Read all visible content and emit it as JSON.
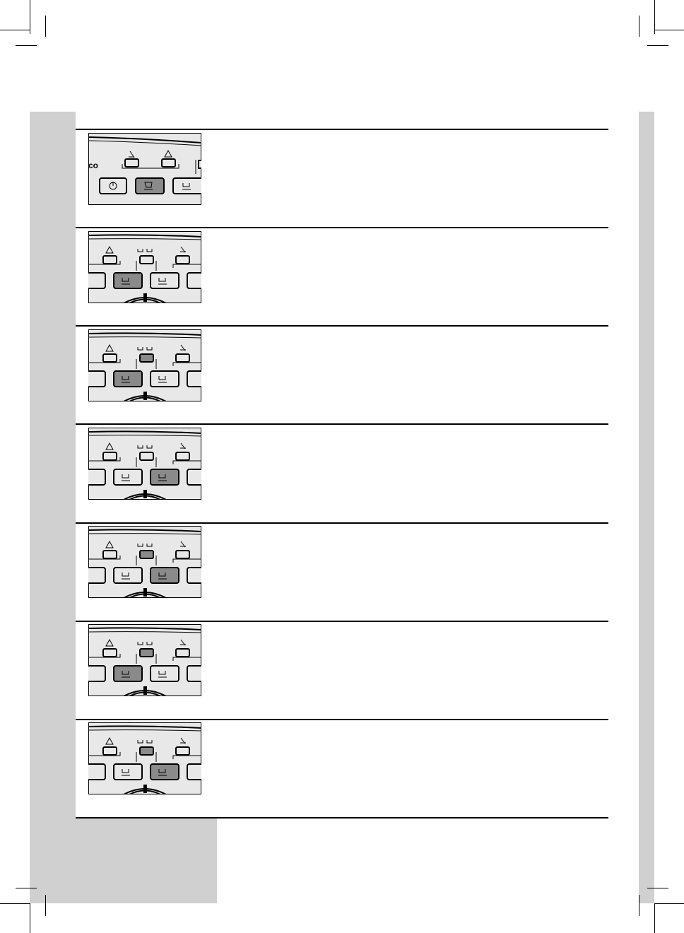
{
  "colors": {
    "band": "#d0d0d0",
    "panel_bg": "#e8e8e8",
    "active": "#8a8a8a",
    "line": "#000000"
  },
  "first_panel": {
    "logo_text": "co",
    "active_button": "espresso-cup-button",
    "icons": [
      "steam-off-icon",
      "warning-icon"
    ]
  },
  "panels": [
    {
      "active_button": 1,
      "middle_led_on": false
    },
    {
      "active_button": 1,
      "middle_led_on": true
    },
    {
      "active_button": 2,
      "middle_led_on": false
    },
    {
      "active_button": 2,
      "middle_led_on": true
    },
    {
      "active_button": 1,
      "middle_led_on": true
    },
    {
      "active_button": 2,
      "middle_led_on": true
    }
  ]
}
